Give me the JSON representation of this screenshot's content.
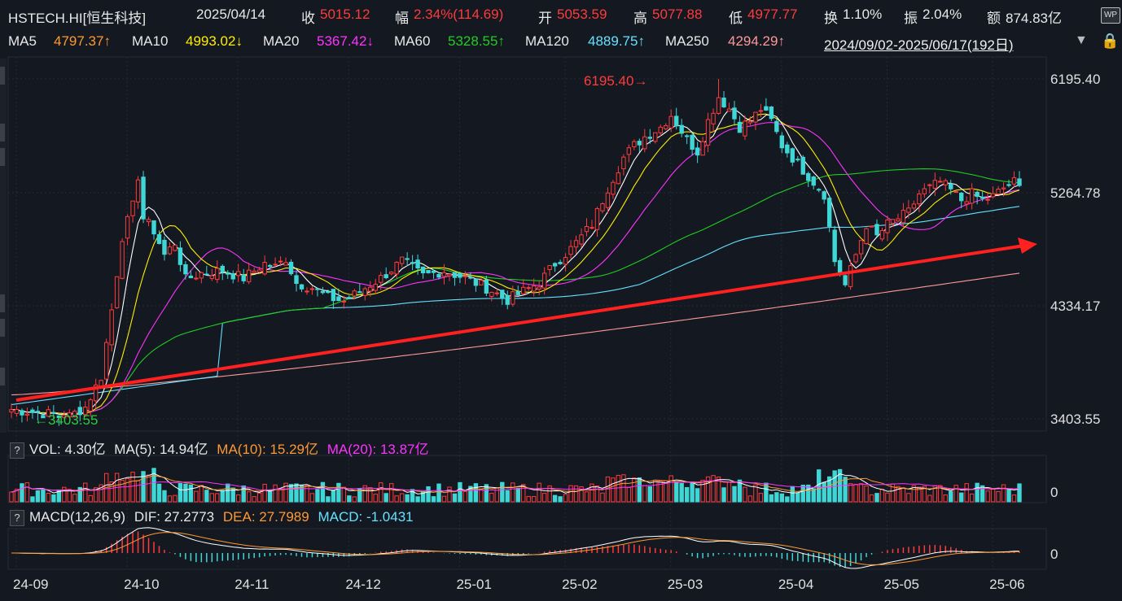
{
  "info": {
    "symbol": "HSTECH.HI[恒生科技]",
    "date": "2025/04/14",
    "close_label": "收",
    "close": "5015.12",
    "amp_label": "幅",
    "amp": "2.34%(114.69)",
    "open_label": "开",
    "open": "5053.59",
    "high_label": "高",
    "high": "5077.88",
    "low_label": "低",
    "low": "4977.77",
    "turnover_label": "换",
    "turnover": "1.10%",
    "swing_label": "振",
    "swing": "2.04%",
    "amount_label": "额",
    "amount": "874.83亿",
    "wp_badge": "WP"
  },
  "ma_bar": {
    "ma5_label": "MA5",
    "ma5": "4797.37↑",
    "ma10_label": "MA10",
    "ma10": "4993.02↓",
    "ma20_label": "MA20",
    "ma20": "5367.42↓",
    "ma60_label": "MA60",
    "ma60": "5328.55↑",
    "ma120_label": "MA120",
    "ma120": "4889.75↑",
    "ma250_label": "MA250",
    "ma250": "4294.29↑",
    "range": "2024/09/02-2025/06/17(192日)",
    "range_arrow": "▼"
  },
  "colors": {
    "up": "#ff3b3b",
    "down": "#3fd6d6",
    "ma5": "#ffffff",
    "ma10": "#ffee00",
    "ma20": "#ff33ff",
    "ma60": "#22cc22",
    "ma120": "#66e0ff",
    "ma250": "#ff9999",
    "trend_arrow": "#ff2020",
    "grid": "#262c36"
  },
  "chart_data": [
    {
      "type": "candlestick",
      "title": "HSTECH.HI",
      "x_ticks": [
        "24-09",
        "24-10",
        "24-11",
        "24-12",
        "25-01",
        "25-02",
        "25-03",
        "25-04",
        "25-05",
        "25-06"
      ],
      "y_ticks": [
        "6195.40",
        "5264.78",
        "4334.17",
        "3403.55"
      ],
      "ylim": [
        3403.55,
        6195.4
      ],
      "annotations": {
        "max": "6195.40",
        "min": "3403.55",
        "max_arrow": "→",
        "min_arrow": "←"
      },
      "waypoints_close": [
        [
          0,
          3480
        ],
        [
          8,
          3440
        ],
        [
          10,
          3403.55
        ],
        [
          14,
          3500
        ],
        [
          17,
          3750
        ],
        [
          19,
          4300
        ],
        [
          21,
          4900
        ],
        [
          23,
          5150
        ],
        [
          24,
          5400
        ],
        [
          25,
          5050
        ],
        [
          27,
          4950
        ],
        [
          29,
          4750
        ],
        [
          31,
          4850
        ],
        [
          33,
          4550
        ],
        [
          36,
          4600
        ],
        [
          40,
          4620
        ],
        [
          44,
          4560
        ],
        [
          48,
          4680
        ],
        [
          50,
          4650
        ],
        [
          52,
          4720
        ],
        [
          54,
          4520
        ],
        [
          57,
          4480
        ],
        [
          60,
          4400
        ],
        [
          63,
          4370
        ],
        [
          66,
          4450
        ],
        [
          70,
          4560
        ],
        [
          74,
          4700
        ],
        [
          78,
          4580
        ],
        [
          82,
          4620
        ],
        [
          86,
          4560
        ],
        [
          90,
          4480
        ],
        [
          94,
          4380
        ],
        [
          97,
          4450
        ],
        [
          100,
          4520
        ],
        [
          103,
          4680
        ],
        [
          106,
          4800
        ],
        [
          110,
          5000
        ],
        [
          113,
          5300
        ],
        [
          116,
          5550
        ],
        [
          118,
          5650
        ],
        [
          120,
          5720
        ],
        [
          123,
          5800
        ],
        [
          125,
          5900
        ],
        [
          128,
          5700
        ],
        [
          130,
          5600
        ],
        [
          132,
          5850
        ],
        [
          134,
          6050
        ],
        [
          136,
          5950
        ],
        [
          138,
          5800
        ],
        [
          140,
          5850
        ],
        [
          142,
          5950
        ],
        [
          144,
          5850
        ],
        [
          146,
          5650
        ],
        [
          148,
          5550
        ],
        [
          150,
          5450
        ],
        [
          152,
          5350
        ],
        [
          154,
          5250
        ],
        [
          156,
          4700
        ],
        [
          158,
          4500
        ],
        [
          160,
          4750
        ],
        [
          162,
          5000
        ],
        [
          164,
          4900
        ],
        [
          166,
          5000
        ],
        [
          168,
          5050
        ],
        [
          170,
          5100
        ],
        [
          172,
          5250
        ],
        [
          174,
          5300
        ],
        [
          176,
          5350
        ],
        [
          178,
          5280
        ],
        [
          180,
          5200
        ],
        [
          182,
          5250
        ],
        [
          184,
          5200
        ],
        [
          186,
          5230
        ],
        [
          188,
          5300
        ],
        [
          190,
          5350
        ],
        [
          191,
          5300
        ]
      ],
      "ma_final": {
        "MA5": 4797.37,
        "MA10": 4993.02,
        "MA20": 5367.42,
        "MA60": 5328.55,
        "MA120": 4889.75,
        "MA250": 4294.29
      }
    },
    {
      "type": "bar",
      "title": "VOL",
      "legend": {
        "vol_label": "VOL: 4.30亿",
        "ma5_label": "MA(5): 14.94亿",
        "ma10_label": "MA(10): 15.29亿",
        "ma20_label": "MA(20): 13.87亿",
        "help": "?"
      },
      "zero_tick": "0"
    },
    {
      "type": "bar",
      "title": "MACD(12,26,9)",
      "legend": {
        "title": "MACD(12,26,9)",
        "dif": "DIF: 27.2773",
        "dea": "DEA: 27.7989",
        "macd": "MACD: -1.0431",
        "help": "?"
      },
      "zero_tick": "0"
    }
  ]
}
